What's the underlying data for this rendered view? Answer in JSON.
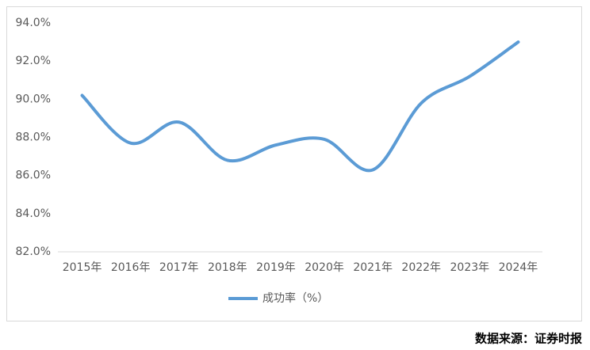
{
  "chart_data": {
    "type": "line",
    "categories": [
      "2015年",
      "2016年",
      "2017年",
      "2018年",
      "2019年",
      "2020年",
      "2021年",
      "2022年",
      "2023年",
      "2024年"
    ],
    "series": [
      {
        "name": "成功率（%）",
        "color": "#5b9bd5",
        "values": [
          90.2,
          87.7,
          88.8,
          86.8,
          87.6,
          87.9,
          86.3,
          89.8,
          91.2,
          93.0
        ]
      }
    ],
    "ylim": [
      82,
      94
    ],
    "yticks": [
      {
        "value": 82,
        "label": "82.0%"
      },
      {
        "value": 84,
        "label": "84.0%"
      },
      {
        "value": 86,
        "label": "86.0%"
      },
      {
        "value": 88,
        "label": "88.0%"
      },
      {
        "value": 90,
        "label": "90.0%"
      },
      {
        "value": 92,
        "label": "92.0%"
      },
      {
        "value": 94,
        "label": "94.0%"
      }
    ],
    "legend": "bottom",
    "source": "数据来源：证券时报"
  }
}
